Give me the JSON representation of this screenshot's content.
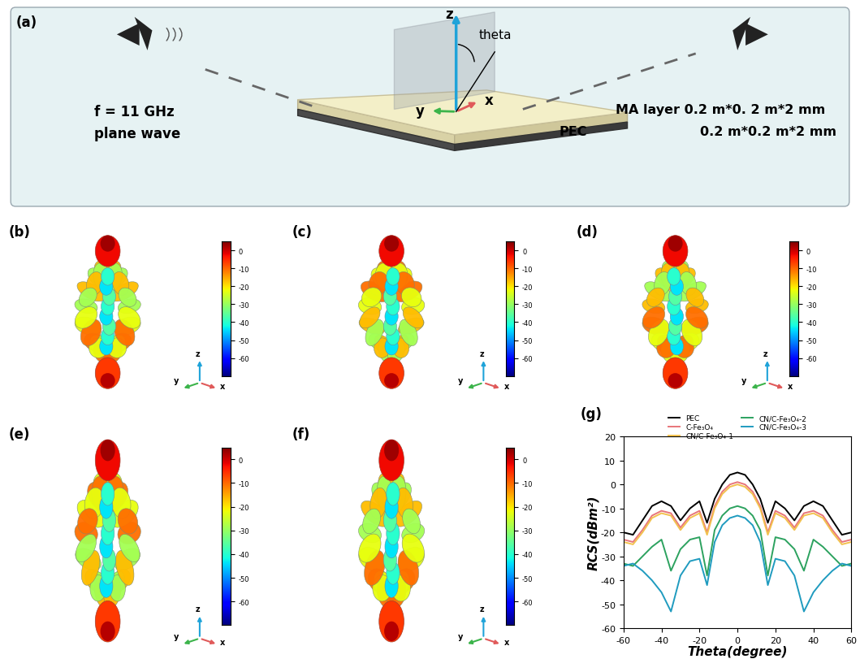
{
  "panel_a": {
    "label": "(a)",
    "z_label": "z",
    "angle_label": "theta",
    "x_label": "x",
    "y_label": "y",
    "frequency": "f = 11 GHz",
    "wave": "plane wave",
    "layer_text": "MA layer 0.2 m*0. 2 m*2 mm",
    "pec_name": "PEC",
    "pec_text": "0.2 m*0.2 m*2 mm"
  },
  "pattern_panels": [
    {
      "label": "(b)"
    },
    {
      "label": "(c)"
    },
    {
      "label": "(d)"
    },
    {
      "label": "(e)"
    },
    {
      "label": "(f)"
    }
  ],
  "pattern_axes": {
    "x": "x",
    "y": "y",
    "z": "z"
  },
  "colorbar": {
    "range": [
      -70,
      5
    ],
    "ticks": [
      0,
      -10,
      -20,
      -30,
      -40,
      -50,
      -60
    ]
  },
  "chart_data": {
    "type": "line",
    "label": "(g)",
    "x_label": "Theta(degree)",
    "y_label": "RCS(dBm²)",
    "x": [
      -60,
      -55,
      -50,
      -45,
      -40,
      -35,
      -30,
      -25,
      -20,
      -16,
      -12,
      -8,
      -4,
      0,
      4,
      8,
      12,
      16,
      20,
      25,
      30,
      35,
      40,
      45,
      50,
      55,
      60
    ],
    "xlim": [
      -60,
      60
    ],
    "xticks": [
      -60,
      -40,
      -20,
      0,
      20,
      40,
      60
    ],
    "ylim": [
      -60,
      20
    ],
    "yticks": [
      -60,
      -50,
      -40,
      -30,
      -20,
      -10,
      0,
      10,
      20
    ],
    "legend": "upper center",
    "series": [
      {
        "name": "PEC",
        "color": "#000000",
        "values": [
          -20,
          -21,
          -15,
          -9,
          -7,
          -9,
          -15,
          -10,
          -7,
          -16,
          -6,
          0,
          4,
          5,
          4,
          0,
          -6,
          -16,
          -7,
          -10,
          -15,
          -9,
          -7,
          -9,
          -15,
          -21,
          -20
        ]
      },
      {
        "name": "C-Fe₃O₄",
        "color": "#e8757a",
        "values": [
          -23,
          -24,
          -19,
          -13,
          -11,
          -12,
          -18,
          -13,
          -11,
          -20,
          -9,
          -3,
          0,
          1,
          0,
          -3,
          -9,
          -20,
          -11,
          -13,
          -18,
          -12,
          -11,
          -13,
          -19,
          -24,
          -23
        ]
      },
      {
        "name": "CN/C-Fe₃O₄-1",
        "color": "#f2c14e",
        "values": [
          -24,
          -25,
          -20,
          -14,
          -12,
          -13,
          -19,
          -14,
          -12,
          -21,
          -10,
          -4,
          -1,
          0,
          -1,
          -4,
          -10,
          -21,
          -12,
          -14,
          -19,
          -13,
          -12,
          -14,
          -20,
          -25,
          -24
        ]
      },
      {
        "name": "CN/C-Fe₃O₄-2",
        "color": "#2ca25f",
        "values": [
          -33,
          -34,
          -30,
          -26,
          -23,
          -36,
          -27,
          -23,
          -22,
          -38,
          -19,
          -13,
          -10,
          -9,
          -10,
          -13,
          -19,
          -38,
          -22,
          -23,
          -27,
          -36,
          -23,
          -26,
          -30,
          -34,
          -33
        ]
      },
      {
        "name": "CN/C-Fe₃O₄-3",
        "color": "#1f9bbf",
        "values": [
          -34,
          -33,
          -36,
          -40,
          -45,
          -53,
          -38,
          -32,
          -31,
          -42,
          -24,
          -17,
          -14,
          -13,
          -14,
          -17,
          -24,
          -42,
          -31,
          -32,
          -38,
          -53,
          -45,
          -40,
          -36,
          -33,
          -34
        ]
      }
    ]
  }
}
